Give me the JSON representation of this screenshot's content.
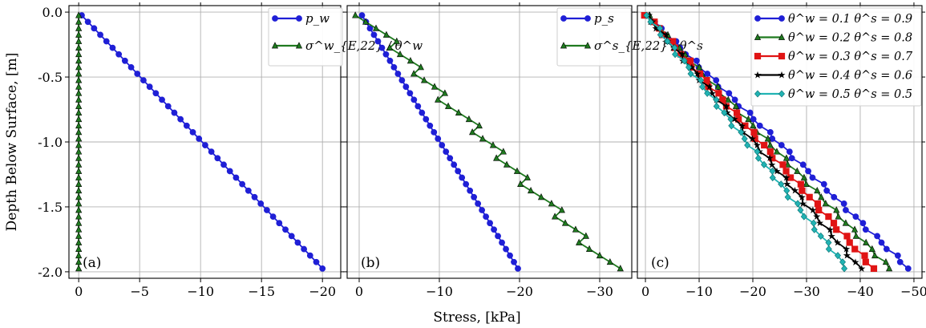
{
  "figure": {
    "ylabel": "Depth Below Surface, [m]",
    "xlabel": "Stress, [kPa]"
  },
  "colors": {
    "blue": "#1f1fd6",
    "green": "#1f7a1f",
    "red": "#e01414",
    "black": "#000000",
    "cyan": "#21b3b3",
    "grid": "#b0b0b0"
  },
  "chart_data": [
    {
      "type": "line",
      "panel_label": "(a)",
      "xlim": [
        0.8,
        -21.5
      ],
      "ylim": [
        -2.05,
        0.05
      ],
      "xticks": [
        0,
        -5,
        -10,
        -15,
        -20
      ],
      "xtick_labels": [
        "0",
        "−5",
        "−10",
        "−15",
        "−20"
      ],
      "yticks": [
        0.0,
        -0.5,
        -1.0,
        -1.5,
        -2.0
      ],
      "ytick_labels": [
        "0.0",
        "-0.5",
        "-1.0",
        "-1.5",
        "-2.0"
      ],
      "grid": true,
      "legend_position": "top-right",
      "series": [
        {
          "name": "p_w",
          "color_key": "blue",
          "marker": "circle",
          "x_from": -0.25,
          "x_to": -20.0,
          "depth_from": -0.025,
          "depth_to": -1.975,
          "count": 40,
          "steps": 0,
          "noise": 0
        },
        {
          "name": "σ^w_{E,22} / θ^w",
          "color_key": "green",
          "marker": "triangle",
          "x_from": 0.0,
          "x_to": 0.0,
          "depth_from": -0.025,
          "depth_to": -1.975,
          "count": 40,
          "steps": 0,
          "noise": 0
        }
      ]
    },
    {
      "type": "line",
      "panel_label": "(b)",
      "xlim": [
        1.5,
        -34.0
      ],
      "ylim": [
        -2.05,
        0.05
      ],
      "xticks": [
        0,
        -10,
        -20,
        -30
      ],
      "xtick_labels": [
        "0",
        "−10",
        "−20",
        "−30"
      ],
      "yticks": [
        0.0,
        -0.5,
        -1.0,
        -1.5,
        -2.0
      ],
      "grid": true,
      "legend_position": "top-right",
      "series": [
        {
          "name": "p_s",
          "color_key": "blue",
          "marker": "circle",
          "x_from": -0.35,
          "x_to": -19.8,
          "depth_from": -0.025,
          "depth_to": -1.975,
          "count": 40,
          "steps": 0,
          "noise": 0
        },
        {
          "name": "σ^s_{E,22} / θ^s",
          "color_key": "green",
          "marker": "triangle",
          "x_from": -0.6,
          "x_to": -31.5,
          "depth_from": -0.025,
          "depth_to": -1.975,
          "count": 40,
          "steps": 9,
          "noise": 0
        }
      ]
    },
    {
      "type": "line",
      "panel_label": "(c)",
      "xlim": [
        1.5,
        -51.5
      ],
      "ylim": [
        -2.05,
        0.05
      ],
      "xticks": [
        0,
        -10,
        -20,
        -30,
        -40,
        -50
      ],
      "xtick_labels": [
        "0",
        "−10",
        "−20",
        "−30",
        "−40",
        "−50"
      ],
      "yticks": [
        0.0,
        -0.5,
        -1.0,
        -1.5,
        -2.0
      ],
      "grid": true,
      "legend_position": "top-right",
      "series": [
        {
          "name": "θ^w = 0.1  θ^s = 0.9",
          "color_key": "blue",
          "marker": "circle",
          "x_from": -0.3,
          "x_to": -49.0,
          "depth_from": -0.025,
          "depth_to": -1.975,
          "count": 40,
          "steps": 0,
          "noise": 0.5
        },
        {
          "name": "θ^w = 0.2  θ^s = 0.8",
          "color_key": "green",
          "marker": "triangle",
          "x_from": -0.3,
          "x_to": -45.5,
          "depth_from": -0.025,
          "depth_to": -1.975,
          "count": 40,
          "steps": 0,
          "noise": 0.5
        },
        {
          "name": "θ^w = 0.3  θ^s = 0.7",
          "color_key": "red",
          "marker": "square",
          "x_from": -0.3,
          "x_to": -42.5,
          "depth_from": -0.025,
          "depth_to": -1.975,
          "count": 40,
          "steps": 0,
          "noise": 0.5
        },
        {
          "name": "θ^w = 0.4  θ^s = 0.6",
          "color_key": "black",
          "marker": "star",
          "x_from": -0.3,
          "x_to": -40.0,
          "depth_from": -0.025,
          "depth_to": -1.975,
          "count": 40,
          "steps": 0,
          "noise": 0.5
        },
        {
          "name": "θ^w = 0.5  θ^s = 0.5",
          "color_key": "cyan",
          "marker": "diamond",
          "x_from": -0.3,
          "x_to": -37.5,
          "depth_from": -0.025,
          "depth_to": -1.975,
          "count": 40,
          "steps": 0,
          "noise": 0.5
        }
      ]
    }
  ]
}
